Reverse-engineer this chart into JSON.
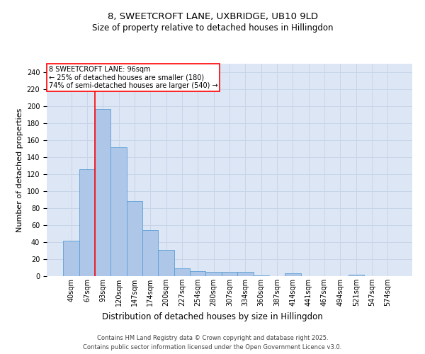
{
  "title1": "8, SWEETCROFT LANE, UXBRIDGE, UB10 9LD",
  "title2": "Size of property relative to detached houses in Hillingdon",
  "xlabel": "Distribution of detached houses by size in Hillingdon",
  "ylabel": "Number of detached properties",
  "annotation_line1": "8 SWEETCROFT LANE: 96sqm",
  "annotation_line2": "← 25% of detached houses are smaller (180)",
  "annotation_line3": "74% of semi-detached houses are larger (540) →",
  "footer1": "Contains HM Land Registry data © Crown copyright and database right 2025.",
  "footer2": "Contains public sector information licensed under the Open Government Licence v3.0.",
  "bins": [
    "40sqm",
    "67sqm",
    "93sqm",
    "120sqm",
    "147sqm",
    "174sqm",
    "200sqm",
    "227sqm",
    "254sqm",
    "280sqm",
    "307sqm",
    "334sqm",
    "360sqm",
    "387sqm",
    "414sqm",
    "441sqm",
    "467sqm",
    "494sqm",
    "521sqm",
    "547sqm",
    "574sqm"
  ],
  "values": [
    42,
    126,
    197,
    152,
    88,
    54,
    31,
    9,
    6,
    5,
    5,
    5,
    1,
    0,
    3,
    0,
    0,
    0,
    2,
    0,
    0
  ],
  "bar_color": "#aec6e8",
  "bar_edge_color": "#5a9fd4",
  "red_line_bin_index": 2,
  "ylim": [
    0,
    250
  ],
  "yticks": [
    0,
    20,
    40,
    60,
    80,
    100,
    120,
    140,
    160,
    180,
    200,
    220,
    240
  ],
  "grid_color": "#c8d4e8",
  "background_color": "#dce6f5",
  "title_fontsize": 9.5,
  "subtitle_fontsize": 8.5,
  "axis_label_fontsize": 8,
  "tick_fontsize": 7,
  "footer_fontsize": 6,
  "annotation_fontsize": 7
}
